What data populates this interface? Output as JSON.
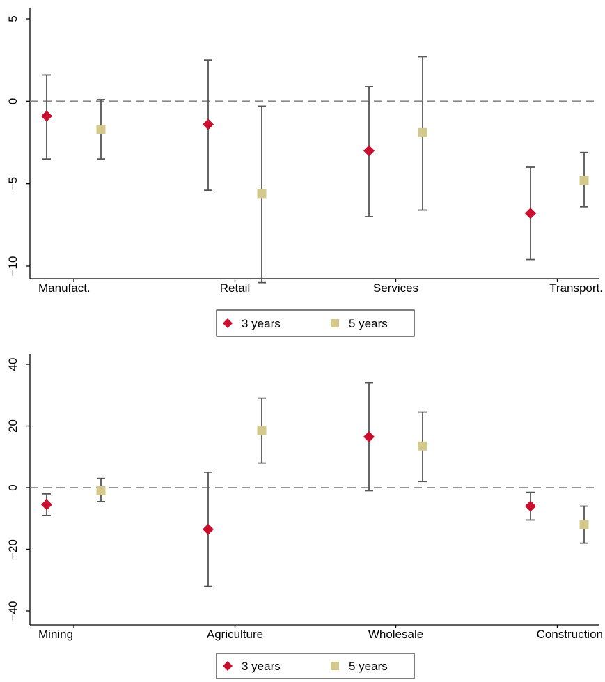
{
  "colors": {
    "series_3y": "#c8102e",
    "series_5y": "#d4c98c",
    "error_bar": "#555555",
    "zero_line": "#888888",
    "axis": "#000000"
  },
  "chart_data": [
    {
      "type": "scatter",
      "categories": [
        "Manufact.",
        "Retail",
        "Services",
        "Transport."
      ],
      "ylim": [
        -12,
        5.5
      ],
      "yticks": [
        5,
        0,
        -5,
        -10
      ],
      "ytick_labels": [
        "5",
        "0",
        "−5",
        "−10"
      ],
      "reference_line": 0,
      "grid": false,
      "legend_position": "bottom",
      "series": [
        {
          "name": "3 years",
          "marker": "diamond",
          "values": [
            -0.9,
            -1.4,
            -3.0,
            -6.8
          ],
          "lower": [
            -3.5,
            -5.4,
            -7.0,
            -9.6
          ],
          "upper": [
            1.6,
            2.5,
            0.9,
            -4.0
          ]
        },
        {
          "name": "5 years",
          "marker": "square",
          "values": [
            -1.7,
            -5.6,
            -1.9,
            -4.8
          ],
          "lower": [
            -3.5,
            -11.0,
            -6.6,
            -6.4
          ],
          "upper": [
            0.1,
            -0.3,
            2.7,
            -3.1
          ]
        }
      ]
    },
    {
      "type": "scatter",
      "categories": [
        "Mining",
        "Agriculture",
        "Wholesale",
        "Construction"
      ],
      "ylim": [
        -45,
        42
      ],
      "yticks": [
        40,
        20,
        0,
        -20,
        -40
      ],
      "ytick_labels": [
        "40",
        "20",
        "0",
        "−20",
        "−40"
      ],
      "reference_line": 0,
      "grid": false,
      "legend_position": "bottom",
      "series": [
        {
          "name": "3 years",
          "marker": "diamond",
          "values": [
            -5.5,
            -13.5,
            16.5,
            -6.0
          ],
          "lower": [
            -9.0,
            -32.0,
            -1.0,
            -10.5
          ],
          "upper": [
            -2.0,
            5.0,
            34.0,
            -1.5
          ]
        },
        {
          "name": "5 years",
          "marker": "square",
          "values": [
            -1.0,
            18.5,
            13.5,
            -12.0
          ],
          "lower": [
            -4.5,
            8.0,
            2.0,
            -18.0
          ],
          "upper": [
            3.0,
            29.0,
            24.5,
            -6.0
          ]
        }
      ]
    }
  ]
}
